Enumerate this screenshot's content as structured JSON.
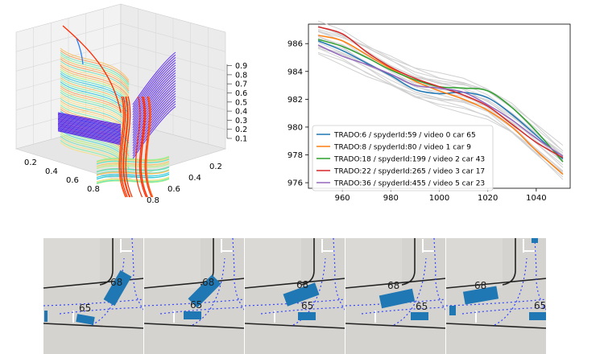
{
  "plot3d": {
    "z_ticks": [
      "0.1",
      "0.2",
      "0.3",
      "0.4",
      "0.5",
      "0.6",
      "0.7",
      "0.8",
      "0.9"
    ],
    "x_ticks": [
      "0.2",
      "0.4",
      "0.6",
      "0.8"
    ],
    "y_ticks": [
      "0.2",
      "0.4",
      "0.6",
      "0.8"
    ]
  },
  "chart_data": {
    "type": "line",
    "title": "",
    "xlabel": "",
    "ylabel": "",
    "xlim": [
      946,
      1054
    ],
    "ylim": [
      975.6,
      987.4
    ],
    "x_ticks": [
      960,
      980,
      1000,
      1020,
      1040
    ],
    "y_ticks": [
      976,
      978,
      980,
      982,
      984,
      986
    ],
    "legend_position": "lower-left",
    "grey_band_color": "#d0d0d0",
    "series": [
      {
        "name": "TRADO:6 / spyderId:59 / video 0 car 65",
        "color": "#1f77b4",
        "x": [
          950,
          960,
          970,
          980,
          990,
          1000,
          1010,
          1020,
          1030,
          1040,
          1051
        ],
        "y": [
          986.2,
          985.5,
          984.6,
          983.7,
          982.7,
          982.4,
          982.5,
          982.1,
          980.9,
          979.4,
          977.7
        ]
      },
      {
        "name": "TRADO:8 / spyderId:80 / video 1 car 9",
        "color": "#ff7f0e",
        "x": [
          950,
          960,
          970,
          980,
          990,
          1000,
          1010,
          1020,
          1030,
          1040,
          1051
        ],
        "y": [
          986.6,
          986.2,
          985.2,
          984.2,
          983.3,
          982.6,
          982.0,
          981.2,
          980.0,
          978.3,
          976.6
        ]
      },
      {
        "name": "TRADO:18 / spyderId:199 / video 2 car 43",
        "color": "#2ca02c",
        "x": [
          950,
          960,
          970,
          980,
          990,
          1000,
          1010,
          1020,
          1030,
          1040,
          1051
        ],
        "y": [
          986.3,
          985.8,
          985.0,
          984.1,
          983.4,
          982.9,
          982.8,
          982.6,
          981.4,
          979.7,
          977.5
        ]
      },
      {
        "name": "TRADO:22 / spyderId:265 / video 3 car 17",
        "color": "#d62728",
        "x": [
          950,
          960,
          970,
          980,
          990,
          1000,
          1010,
          1020,
          1030,
          1040,
          1051
        ],
        "y": [
          987.2,
          986.7,
          985.4,
          984.3,
          983.5,
          982.9,
          982.3,
          981.5,
          980.2,
          978.9,
          977.8
        ]
      },
      {
        "name": "TRADO:36 / spyderId:455 / video 5 car 23",
        "color": "#9467bd",
        "x": [
          950,
          960,
          970,
          980,
          990,
          1000,
          1010,
          1020,
          1030,
          1040,
          1051
        ],
        "y": [
          985.9,
          985.1,
          984.5,
          983.8,
          983.0,
          982.8,
          982.5,
          981.6,
          980.5,
          979.2,
          977.9
        ]
      }
    ]
  },
  "frames": {
    "car_labels": [
      {
        "a": "68",
        "b": "65"
      },
      {
        "a": "68",
        "b": "65"
      },
      {
        "a": "68",
        "b": "65"
      },
      {
        "a": "68",
        "b": "65"
      },
      {
        "a": "68",
        "b": "65"
      }
    ]
  }
}
